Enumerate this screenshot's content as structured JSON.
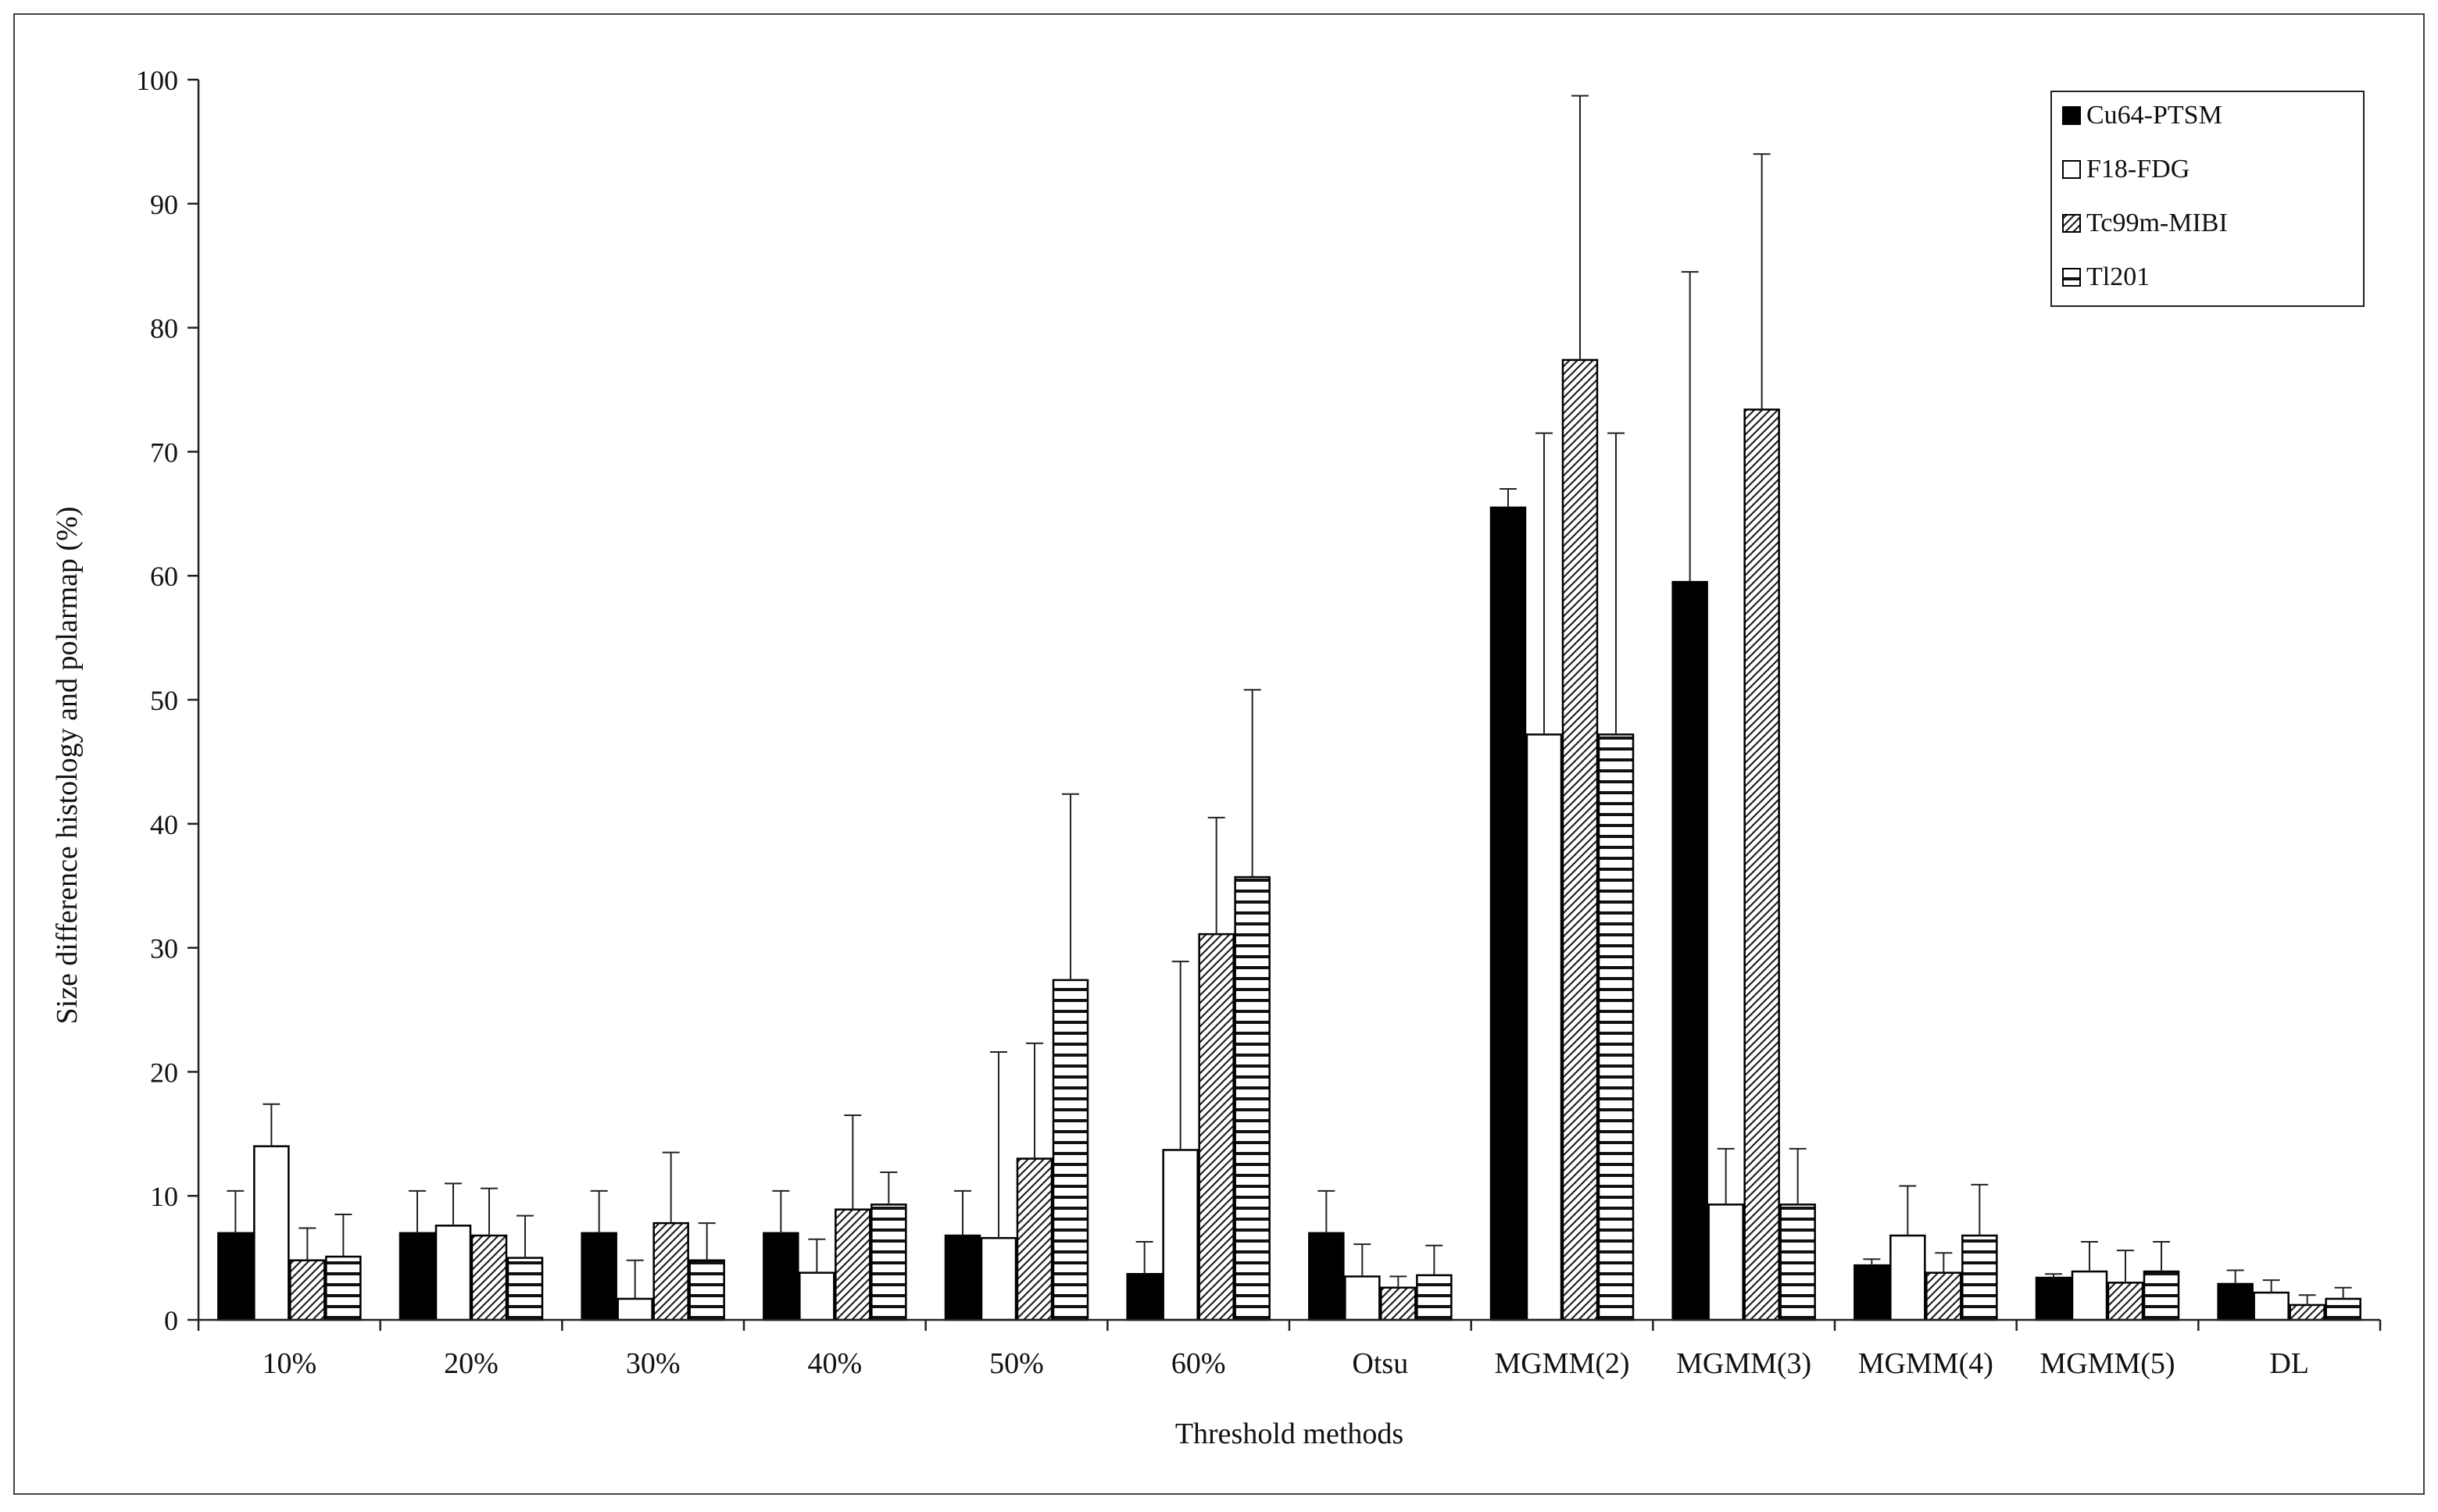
{
  "chart_data": {
    "type": "bar",
    "title": "",
    "xlabel": "Threshold methods",
    "ylabel": "Size difference histology and polarmap (%)",
    "ylim": [
      0,
      100
    ],
    "yticks": [
      0,
      10,
      20,
      30,
      40,
      50,
      60,
      70,
      80,
      90,
      100
    ],
    "grid": false,
    "legend_position": "top-right",
    "categories": [
      "10%",
      "20%",
      "30%",
      "40%",
      "50%",
      "60%",
      "Otsu",
      "MGMM(2)",
      "MGMM(3)",
      "MGMM(4)",
      "MGMM(5)",
      "DL"
    ],
    "series": [
      {
        "name": "Cu64-PTSM",
        "pattern": "solid",
        "values": [
          7,
          7,
          7,
          7,
          6.8,
          3.7,
          7,
          65.5,
          59.5,
          4.4,
          3.4,
          2.9
        ],
        "errors": [
          3.4,
          3.4,
          3.4,
          3.4,
          3.6,
          2.6,
          3.4,
          1.5,
          25,
          0.5,
          0.3,
          1.1
        ]
      },
      {
        "name": "F18-FDG",
        "pattern": "white",
        "values": [
          14,
          7.6,
          1.7,
          3.8,
          6.6,
          13.7,
          3.5,
          47.2,
          9.3,
          6.8,
          3.9,
          2.2
        ],
        "errors": [
          3.4,
          3.4,
          3.1,
          2.7,
          15,
          15.2,
          2.6,
          24.3,
          4.5,
          4,
          2.4,
          1
        ]
      },
      {
        "name": "Tc99m-MIBI",
        "pattern": "diagonal",
        "values": [
          4.8,
          6.8,
          7.8,
          8.9,
          13,
          31.1,
          2.6,
          77.4,
          73.4,
          3.8,
          3,
          1.2
        ],
        "errors": [
          2.6,
          3.8,
          5.7,
          7.6,
          9.3,
          9.4,
          0.9,
          21.3,
          20.6,
          1.6,
          2.6,
          0.8
        ]
      },
      {
        "name": "Tl201",
        "pattern": "horizontal",
        "values": [
          5.1,
          5,
          4.8,
          9.3,
          27.4,
          35.7,
          3.6,
          47.2,
          9.3,
          6.8,
          3.9,
          1.7
        ],
        "errors": [
          3.4,
          3.4,
          3,
          2.6,
          15,
          15.1,
          2.4,
          24.3,
          4.5,
          4.1,
          2.4,
          0.9
        ]
      }
    ]
  }
}
